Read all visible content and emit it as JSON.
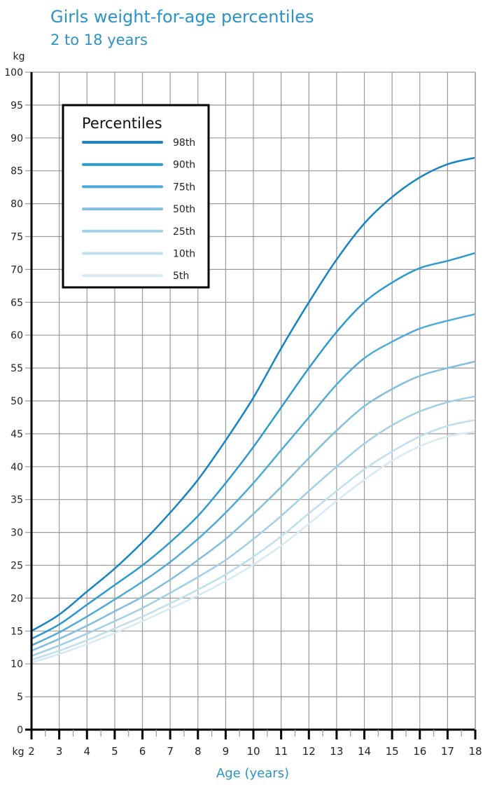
{
  "header": {
    "title": "Girls weight-for-age percentiles",
    "subtitle": "2 to 18 years"
  },
  "axes": {
    "y_unit_top": "kg",
    "y_unit_bottom": "kg",
    "xlabel": "Age (years)"
  },
  "legend": {
    "title": "Percentiles"
  },
  "colors": {
    "p98": "#1683c4",
    "p90": "#2b9ad0",
    "p75": "#4eaad8",
    "p50": "#82bedd",
    "p25": "#a1d0e6",
    "p10": "#bfdfee",
    "p5": "#d6eaf4",
    "grid": "#9a9a9a",
    "axis": "#000000",
    "title": "#2a93c9"
  },
  "chart_data": {
    "type": "line",
    "title": "Girls weight-for-age percentiles",
    "subtitle": "2 to 18 years",
    "xlabel": "Age (years)",
    "ylabel": "kg",
    "x": [
      2,
      3,
      4,
      5,
      6,
      7,
      8,
      9,
      10,
      11,
      12,
      13,
      14,
      15,
      16,
      17,
      18
    ],
    "xlim": [
      2,
      18
    ],
    "ylim": [
      0,
      100
    ],
    "yticks": [
      0,
      5,
      10,
      15,
      20,
      25,
      30,
      35,
      40,
      45,
      50,
      55,
      60,
      65,
      70,
      75,
      80,
      85,
      90,
      95,
      100
    ],
    "xticks": [
      2,
      3,
      4,
      5,
      6,
      7,
      8,
      9,
      10,
      11,
      12,
      13,
      14,
      15,
      16,
      17,
      18
    ],
    "grid": true,
    "legend_position": "upper-left",
    "series": [
      {
        "name": "98th",
        "values": [
          15,
          17.5,
          21,
          24.5,
          28.5,
          33,
          38,
          44,
          50.5,
          58,
          65,
          71.5,
          77,
          81,
          84,
          86,
          87
        ]
      },
      {
        "name": "90th",
        "values": [
          13.8,
          16,
          19,
          22,
          25,
          28.5,
          32.5,
          37.5,
          43,
          49,
          55,
          60.5,
          65,
          68,
          70.2,
          71.3,
          72.5
        ]
      },
      {
        "name": "75th",
        "values": [
          12.8,
          14.8,
          17.2,
          19.8,
          22.5,
          25.5,
          29,
          33,
          37.5,
          42.5,
          47.5,
          52.5,
          56.5,
          59,
          61,
          62.2,
          63.2
        ]
      },
      {
        "name": "50th",
        "values": [
          12,
          13.8,
          15.8,
          18,
          20.2,
          22.8,
          25.8,
          29,
          32.8,
          36.9,
          41.3,
          45.5,
          49.2,
          51.8,
          53.8,
          55,
          56
        ]
      },
      {
        "name": "25th",
        "values": [
          11.2,
          12.8,
          14.6,
          16.5,
          18.5,
          20.8,
          23.2,
          25.8,
          29,
          32.5,
          36.3,
          40,
          43.5,
          46.3,
          48.4,
          49.8,
          50.7
        ]
      },
      {
        "name": "10th",
        "values": [
          10.6,
          12,
          13.6,
          15.4,
          17.2,
          19.2,
          21.3,
          23.6,
          26.3,
          29.4,
          32.9,
          36.3,
          39.6,
          42.3,
          44.6,
          46.2,
          47.1
        ]
      },
      {
        "name": "5th",
        "values": [
          10.2,
          11.5,
          13,
          14.7,
          16.5,
          18.4,
          20.4,
          22.6,
          25.1,
          28,
          31.3,
          34.8,
          38,
          40.9,
          43.1,
          44.6,
          45.3
        ]
      }
    ]
  }
}
